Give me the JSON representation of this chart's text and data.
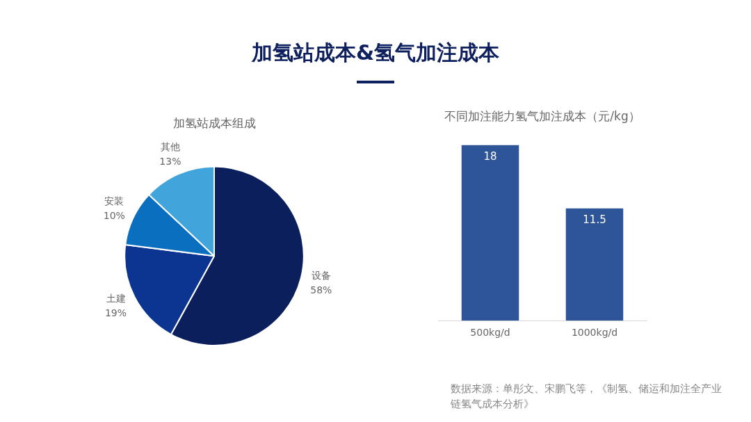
{
  "chart_data": [
    {
      "type": "pie",
      "title": "加氢站成本&氢气加注成本",
      "subtitle": "加氢站成本组成",
      "categories": [
        "设备",
        "土建",
        "安装",
        "其他"
      ],
      "values": [
        58,
        19,
        10,
        13
      ],
      "colors": [
        "#0a1f5c",
        "#0b3590",
        "#0b6fc0",
        "#41a5dc"
      ],
      "value_labels": [
        "58%",
        "19%",
        "10%",
        "13%"
      ],
      "legend": false
    },
    {
      "type": "bar",
      "title": "不同加注能力氢气加注成本（元/kg）",
      "categories": [
        "500kg/d",
        "1000kg/d"
      ],
      "values": [
        18,
        11.5
      ],
      "color": "#2e5597",
      "data_labels": true,
      "legend": false,
      "grid": false,
      "tick_labels": "x",
      "annotations": [
        "数据来源：单彤文、宋鹏飞等，《制氢、储运和加注全产业链氢气成本分析》"
      ]
    }
  ]
}
